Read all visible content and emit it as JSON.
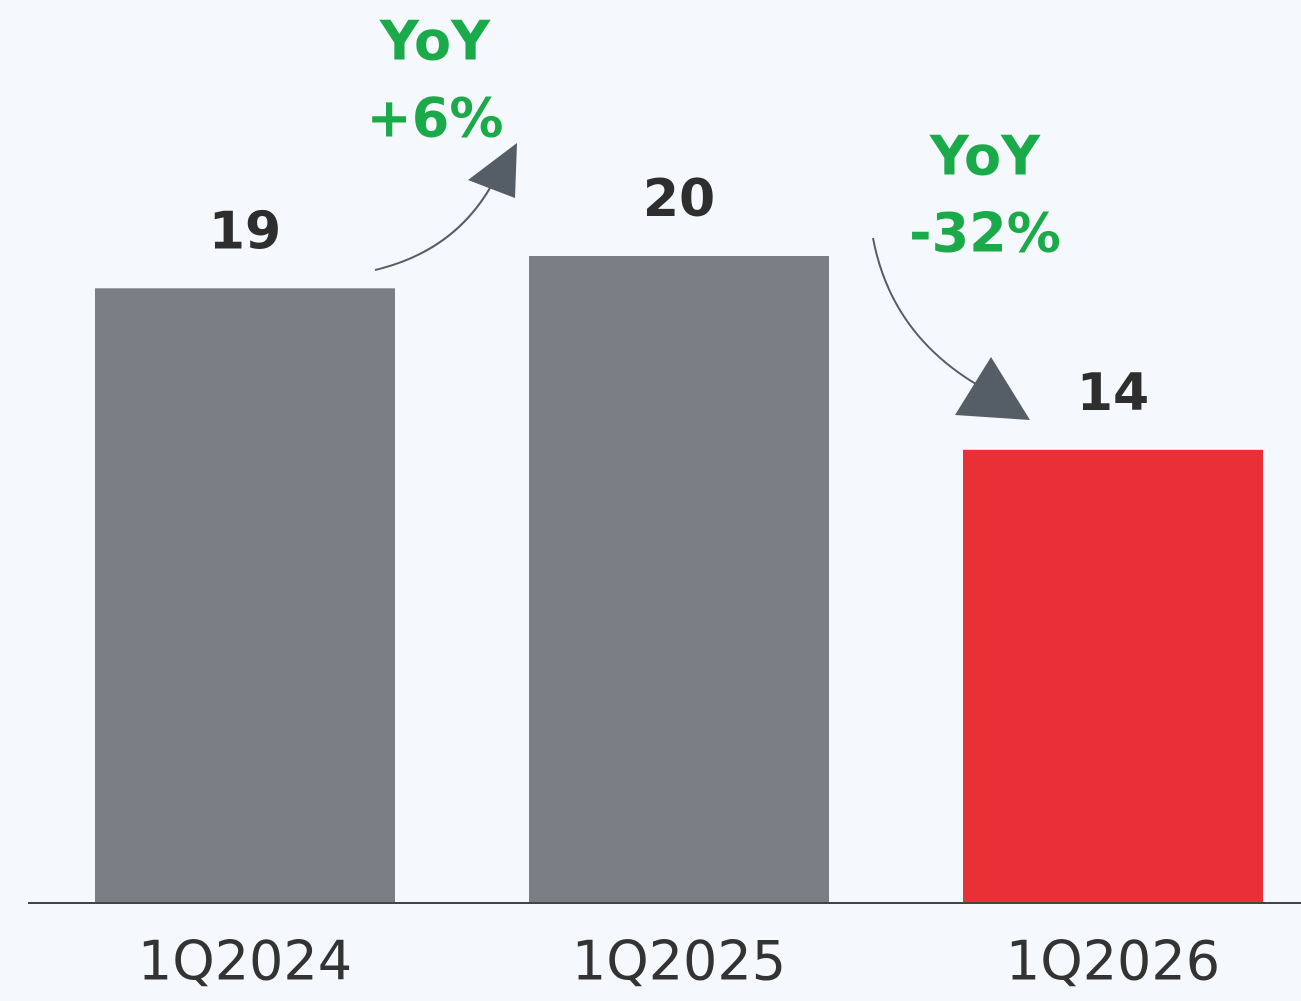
{
  "chart_data": {
    "type": "bar",
    "categories": [
      "1Q2024",
      "1Q2025",
      "1Q2026"
    ],
    "values": [
      19,
      20,
      14
    ],
    "colors": [
      "#7a7f85",
      "#7a7f85",
      "#e83036"
    ],
    "ylim": [
      0,
      20
    ],
    "annotations": [
      [
        "YoY",
        "+6%"
      ],
      [
        "YoY",
        "-32%"
      ]
    ]
  }
}
